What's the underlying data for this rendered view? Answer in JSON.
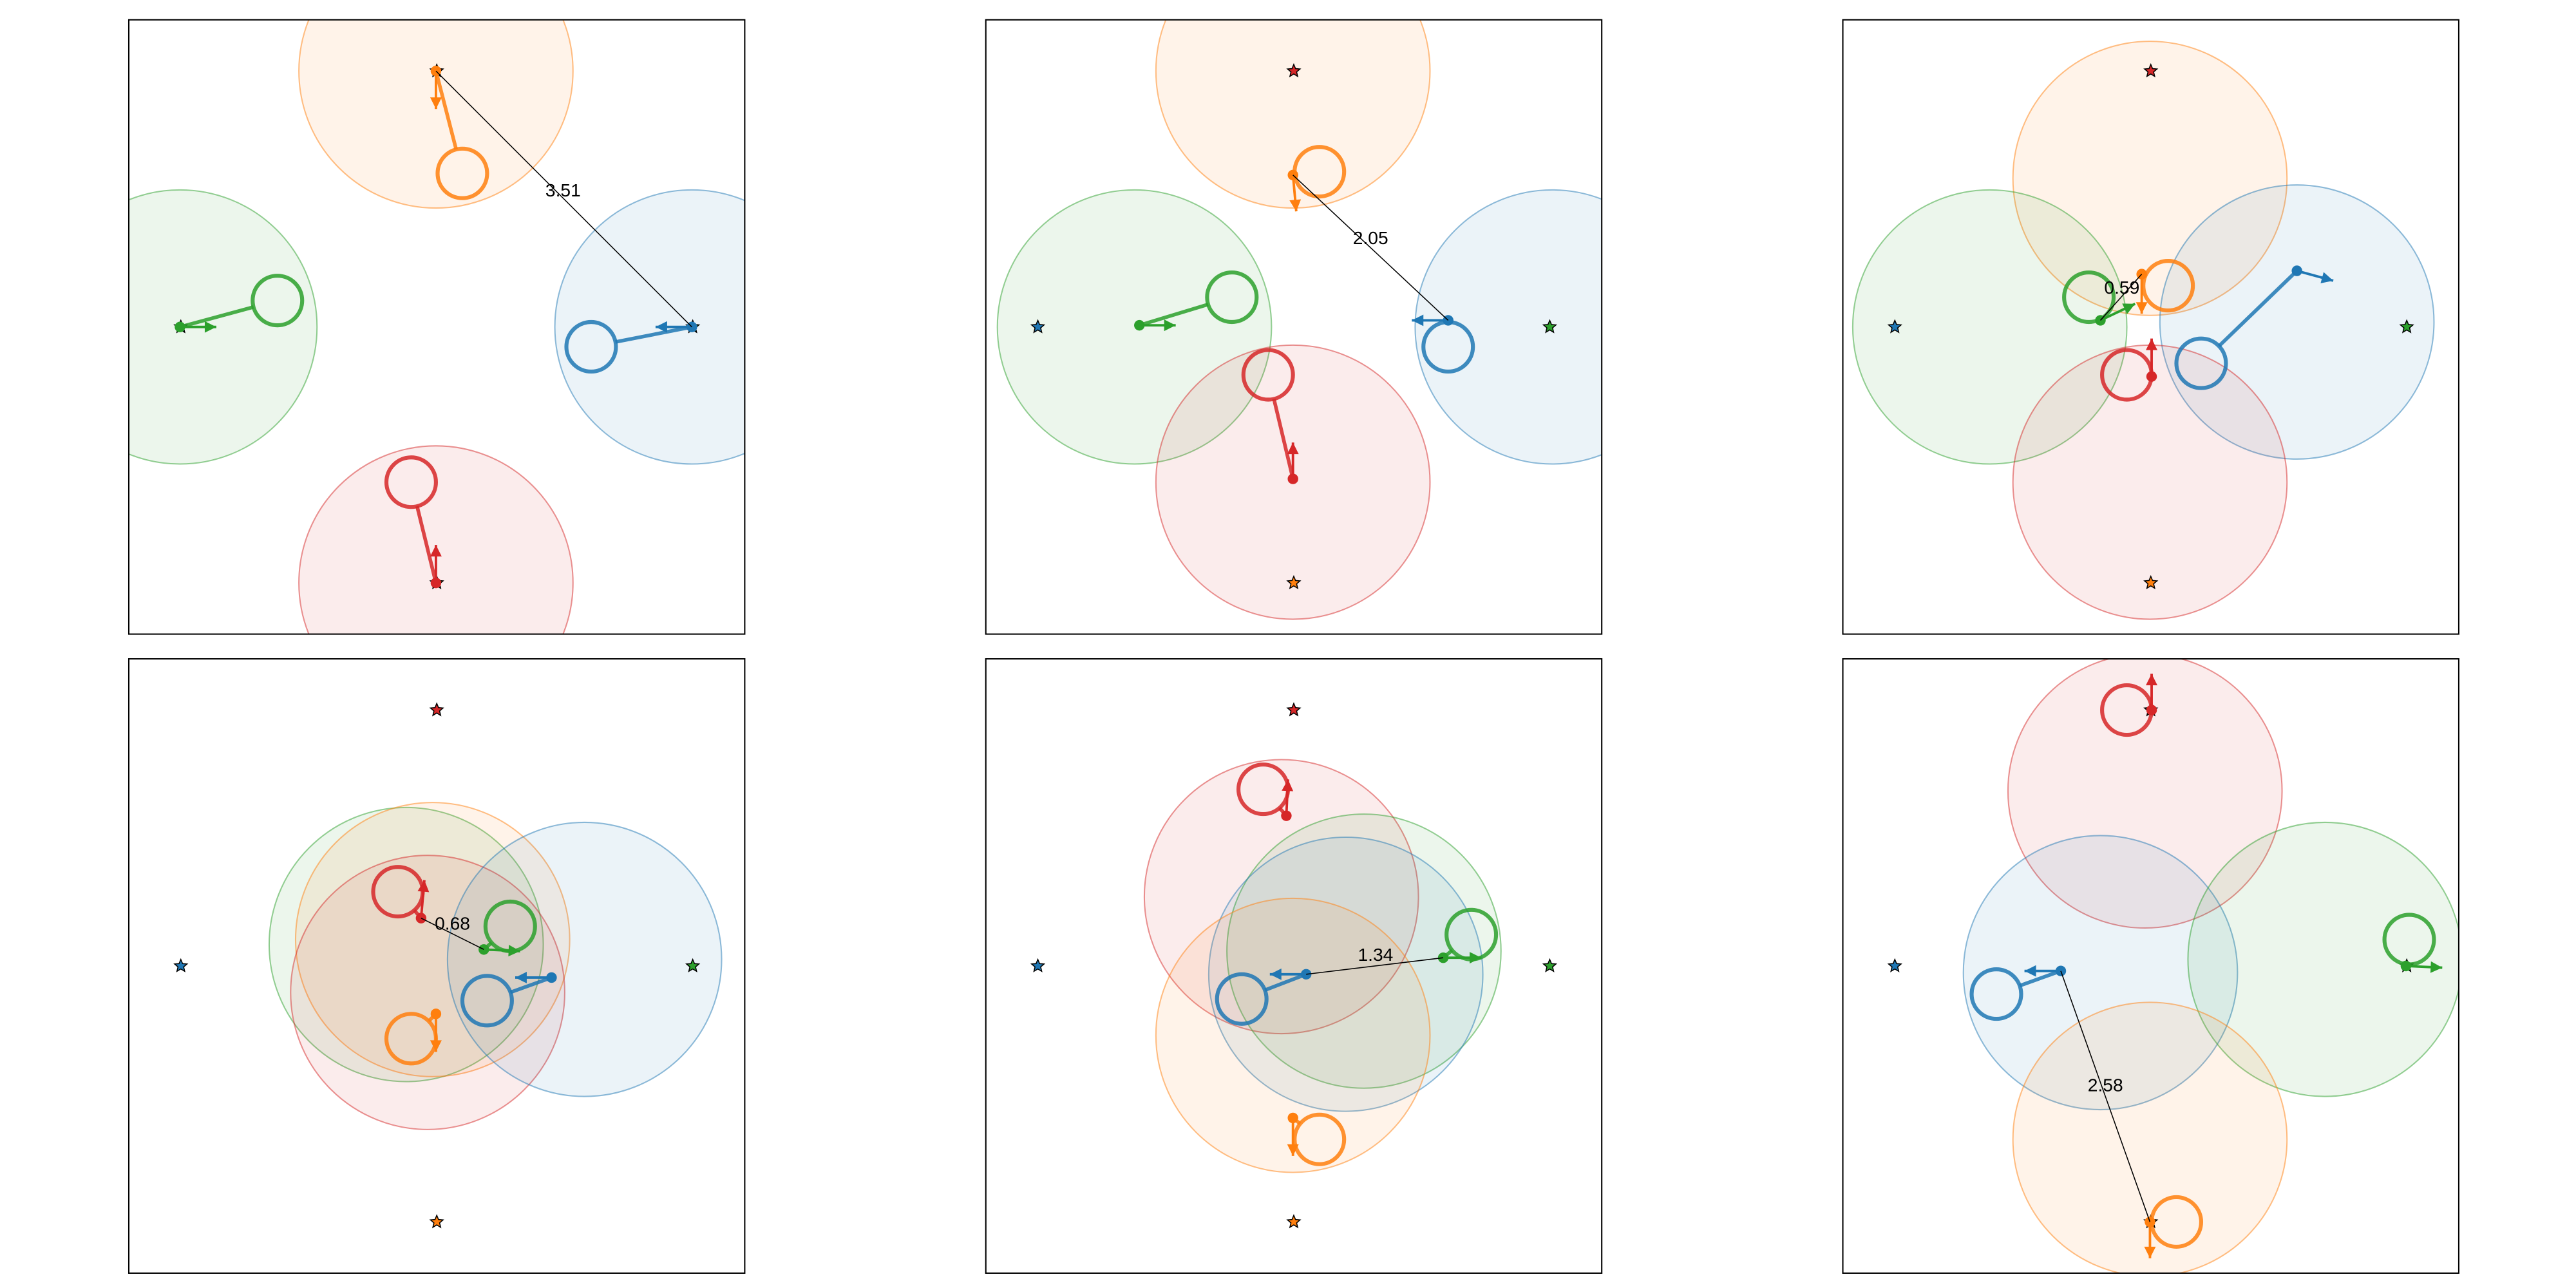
{
  "panels": [
    {
      "distance": 3.51
    },
    {
      "distance": 2.05
    },
    {
      "distance": 0.59
    },
    {
      "distance": 0.68
    },
    {
      "distance": 1.34
    },
    {
      "distance": 2.58
    }
  ]
}
